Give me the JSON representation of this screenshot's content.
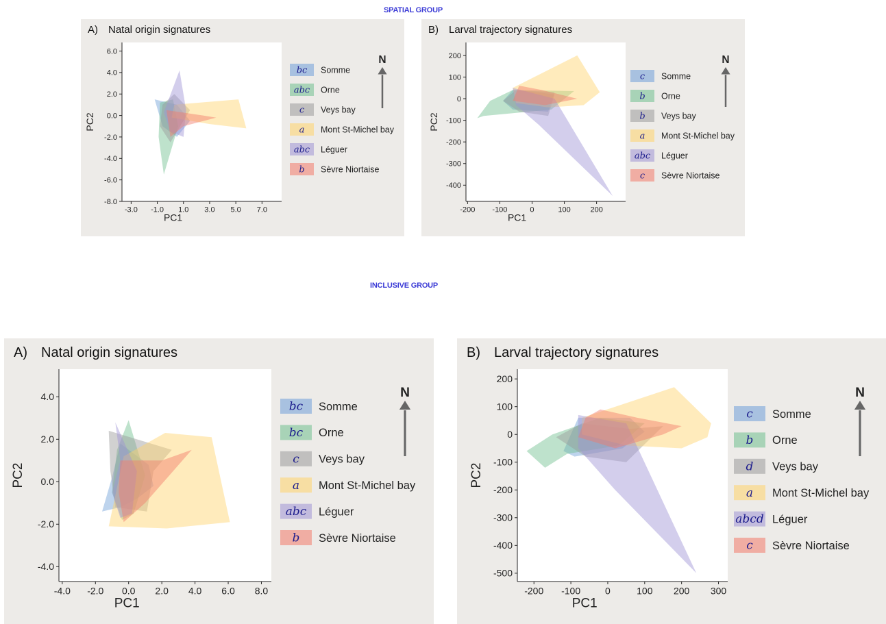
{
  "groups": {
    "spatial_title": "SPATIAL GROUP",
    "inclusive_title": "INCLUSIVE GROUP"
  },
  "compass": {
    "label": "N"
  },
  "colors": {
    "Somme": "#6f9fd8",
    "Orne": "#6fbf8e",
    "Veys bay": "#9a9a9a",
    "Mont St-Michel bay": "#ffd36a",
    "Léguer": "#9e93d4",
    "Sèvre Niortaise": "#f27a6a"
  },
  "chart_data": [
    {
      "id": "spatial-natal",
      "type": "scatter",
      "panel_label": "A)",
      "title": "Natal origin signatures",
      "xlabel": "PC1",
      "ylabel": "PC2",
      "xlim": [
        -3.7,
        8.5
      ],
      "ylim": [
        -8.0,
        6.8
      ],
      "xticks": [
        -3.0,
        -1.0,
        1.0,
        3.0,
        5.0,
        7.0
      ],
      "yticks": [
        -8.0,
        -6.0,
        -4.0,
        -2.0,
        0.0,
        2.0,
        4.0,
        6.0
      ],
      "tick_decimals": 1,
      "legend_position": "right",
      "series": [
        {
          "name": "Somme",
          "letters": "bc",
          "hull": [
            [
              -1.2,
              1.5
            ],
            [
              0.5,
              1.0
            ],
            [
              1.5,
              -0.5
            ],
            [
              0.5,
              -2.0
            ],
            [
              -0.6,
              -1.0
            ]
          ]
        },
        {
          "name": "Orne",
          "letters": "abc",
          "hull": [
            [
              -0.8,
              1.2
            ],
            [
              0.2,
              1.5
            ],
            [
              0.6,
              -1.0
            ],
            [
              -0.5,
              -5.5
            ],
            [
              -0.9,
              -2.0
            ]
          ]
        },
        {
          "name": "Veys bay",
          "letters": "c",
          "hull": [
            [
              -0.6,
              1.0
            ],
            [
              0.3,
              2.0
            ],
            [
              1.5,
              0.5
            ],
            [
              0.0,
              -2.5
            ],
            [
              -0.8,
              -1.0
            ]
          ]
        },
        {
          "name": "Mont St-Michel bay",
          "letters": "a",
          "hull": [
            [
              0.3,
              1.0
            ],
            [
              5.2,
              1.5
            ],
            [
              5.8,
              -1.2
            ],
            [
              3.0,
              -0.8
            ],
            [
              0.1,
              -0.2
            ]
          ]
        },
        {
          "name": "Léguer",
          "letters": "abc",
          "hull": [
            [
              0.7,
              4.2
            ],
            [
              1.2,
              0.5
            ],
            [
              1.0,
              -2.0
            ],
            [
              0.0,
              -1.5
            ],
            [
              -0.5,
              0.3
            ]
          ]
        },
        {
          "name": "Sèvre Niortaise",
          "letters": "b",
          "hull": [
            [
              -0.3,
              0.5
            ],
            [
              2.5,
              0.0
            ],
            [
              3.5,
              -0.2
            ],
            [
              1.0,
              -1.0
            ],
            [
              0.0,
              -2.0
            ]
          ]
        }
      ]
    },
    {
      "id": "spatial-larval",
      "type": "scatter",
      "panel_label": "B)",
      "title": "Larval trajectory signatures",
      "xlabel": "PC1",
      "ylabel": "PC2",
      "xlim": [
        -205,
        290
      ],
      "ylim": [
        -475,
        260
      ],
      "xticks": [
        -200,
        -100,
        0,
        100,
        200
      ],
      "yticks": [
        -400,
        -300,
        -200,
        -100,
        0,
        100,
        200
      ],
      "tick_decimals": 0,
      "legend_position": "right",
      "series": [
        {
          "name": "Somme",
          "letters": "c",
          "hull": [
            [
              -60,
              40
            ],
            [
              70,
              30
            ],
            [
              50,
              -60
            ],
            [
              -60,
              -50
            ],
            [
              -90,
              -10
            ]
          ]
        },
        {
          "name": "Orne",
          "letters": "b",
          "hull": [
            [
              -130,
              -10
            ],
            [
              -60,
              40
            ],
            [
              130,
              35
            ],
            [
              60,
              -50
            ],
            [
              -150,
              -80
            ],
            [
              -170,
              -90
            ]
          ]
        },
        {
          "name": "Veys bay",
          "letters": "b",
          "hull": [
            [
              -90,
              -10
            ],
            [
              -50,
              40
            ],
            [
              70,
              20
            ],
            [
              50,
              -80
            ],
            [
              -40,
              -60
            ]
          ]
        },
        {
          "name": "Mont St-Michel bay",
          "letters": "a",
          "hull": [
            [
              -60,
              50
            ],
            [
              140,
              200
            ],
            [
              210,
              30
            ],
            [
              160,
              -30
            ],
            [
              50,
              -40
            ],
            [
              -50,
              -20
            ]
          ]
        },
        {
          "name": "Léguer",
          "letters": "abc",
          "hull": [
            [
              -60,
              50
            ],
            [
              70,
              0
            ],
            [
              250,
              -450
            ],
            [
              20,
              -120
            ],
            [
              -50,
              -30
            ]
          ]
        },
        {
          "name": "Sèvre Niortaise",
          "letters": "c",
          "hull": [
            [
              -40,
              60
            ],
            [
              30,
              40
            ],
            [
              140,
              0
            ],
            [
              40,
              -30
            ],
            [
              -60,
              -10
            ]
          ]
        }
      ]
    },
    {
      "id": "inclusive-natal",
      "type": "scatter",
      "panel_label": "A)",
      "title": "Natal origin signatures",
      "xlabel": "PC1",
      "ylabel": "PC2",
      "xlim": [
        -4.2,
        8.6
      ],
      "ylim": [
        -4.7,
        5.3
      ],
      "xticks": [
        -4.0,
        -2.0,
        0.0,
        2.0,
        4.0,
        6.0,
        8.0
      ],
      "yticks": [
        -4.0,
        -2.0,
        0.0,
        2.0,
        4.0
      ],
      "tick_decimals": 1,
      "legend_position": "right",
      "series": [
        {
          "name": "Somme",
          "letters": "bc",
          "hull": [
            [
              -1.6,
              -1.4
            ],
            [
              -1.0,
              0.2
            ],
            [
              -0.5,
              1.8
            ],
            [
              1.2,
              0.8
            ],
            [
              1.5,
              -0.2
            ],
            [
              0.5,
              -0.8
            ],
            [
              -0.5,
              -1.2
            ]
          ]
        },
        {
          "name": "Orne",
          "letters": "bc",
          "hull": [
            [
              -1.0,
              -0.5
            ],
            [
              -0.7,
              1.5
            ],
            [
              0.0,
              2.9
            ],
            [
              1.0,
              0.3
            ],
            [
              0.3,
              -1.5
            ],
            [
              -0.4,
              -1.8
            ]
          ]
        },
        {
          "name": "Veys bay",
          "letters": "c",
          "hull": [
            [
              -1.2,
              2.4
            ],
            [
              2.6,
              1.5
            ],
            [
              1.5,
              0.5
            ],
            [
              1.1,
              -1.4
            ],
            [
              -0.8,
              -1.2
            ],
            [
              -1.1,
              0.5
            ]
          ]
        },
        {
          "name": "Mont St-Michel bay",
          "letters": "a",
          "hull": [
            [
              -1.2,
              -2.1
            ],
            [
              2.3,
              -2.2
            ],
            [
              6.1,
              -1.9
            ],
            [
              5.0,
              2.1
            ],
            [
              2.2,
              2.3
            ],
            [
              -0.3,
              1.2
            ]
          ]
        },
        {
          "name": "Léguer",
          "letters": "abc",
          "hull": [
            [
              -0.8,
              2.8
            ],
            [
              0.5,
              0.5
            ],
            [
              0.2,
              -1.5
            ],
            [
              -0.5,
              -1.7
            ],
            [
              -1.0,
              -0.5
            ],
            [
              -0.5,
              1.0
            ]
          ]
        },
        {
          "name": "Sèvre Niortaise",
          "letters": "b",
          "hull": [
            [
              -0.5,
              1.0
            ],
            [
              2.0,
              1.0
            ],
            [
              3.8,
              1.5
            ],
            [
              1.0,
              -1.0
            ],
            [
              -0.3,
              -1.9
            ],
            [
              -0.6,
              -0.5
            ]
          ]
        }
      ]
    },
    {
      "id": "inclusive-larval",
      "type": "scatter",
      "panel_label": "B)",
      "title": "Larval trajectory signatures",
      "xlabel": "PC1",
      "ylabel": "PC2",
      "xlim": [
        -245,
        325
      ],
      "ylim": [
        -530,
        235
      ],
      "xticks": [
        -200,
        -100,
        0,
        100,
        200,
        300
      ],
      "yticks": [
        -500,
        -400,
        -300,
        -200,
        -100,
        0,
        100,
        200
      ],
      "tick_decimals": 0,
      "legend_position": "right",
      "series": [
        {
          "name": "Somme",
          "letters": "c",
          "hull": [
            [
              -80,
              60
            ],
            [
              60,
              60
            ],
            [
              100,
              10
            ],
            [
              40,
              -50
            ],
            [
              -90,
              -80
            ],
            [
              -120,
              -60
            ]
          ]
        },
        {
          "name": "Orne",
          "letters": "b",
          "hull": [
            [
              -220,
              -60
            ],
            [
              -150,
              0
            ],
            [
              -20,
              60
            ],
            [
              100,
              40
            ],
            [
              30,
              -40
            ],
            [
              -110,
              -70
            ],
            [
              -170,
              -120
            ]
          ]
        },
        {
          "name": "Veys bay",
          "letters": "d",
          "hull": [
            [
              -140,
              -10
            ],
            [
              -70,
              40
            ],
            [
              60,
              20
            ],
            [
              150,
              30
            ],
            [
              50,
              -100
            ],
            [
              -60,
              -80
            ]
          ]
        },
        {
          "name": "Mont St-Michel bay",
          "letters": "a",
          "hull": [
            [
              -70,
              60
            ],
            [
              180,
              170
            ],
            [
              280,
              40
            ],
            [
              270,
              -10
            ],
            [
              200,
              -50
            ],
            [
              50,
              -40
            ],
            [
              -70,
              0
            ]
          ]
        },
        {
          "name": "Léguer",
          "letters": "abcd",
          "hull": [
            [
              -80,
              70
            ],
            [
              50,
              40
            ],
            [
              240,
              -500
            ],
            [
              20,
              -200
            ],
            [
              -80,
              -50
            ]
          ]
        },
        {
          "name": "Sèvre Niortaise",
          "letters": "c",
          "hull": [
            [
              -60,
              60
            ],
            [
              -20,
              90
            ],
            [
              80,
              60
            ],
            [
              200,
              30
            ],
            [
              150,
              0
            ],
            [
              20,
              -50
            ],
            [
              -80,
              -10
            ]
          ]
        }
      ]
    }
  ]
}
